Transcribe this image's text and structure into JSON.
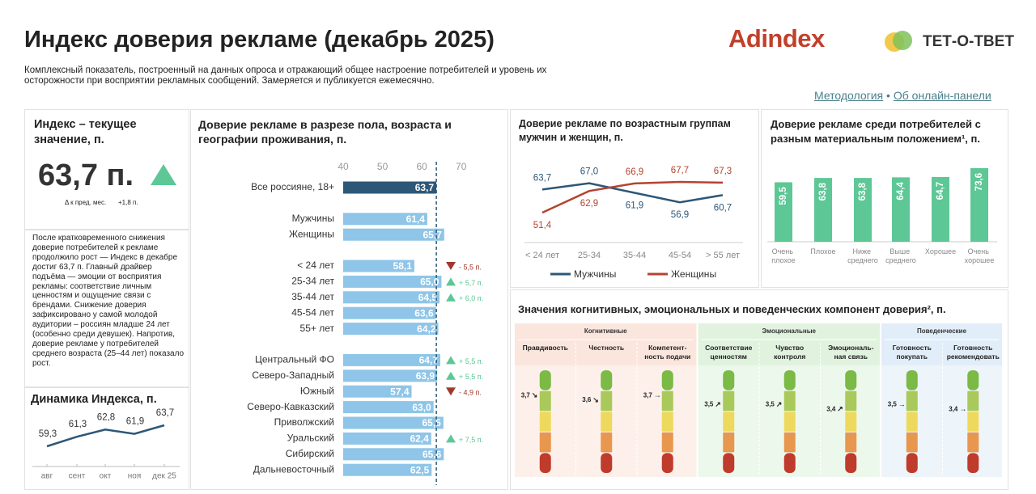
{
  "header": {
    "title": "Индекс доверия рекламе (декабрь 2025)",
    "subtitle": "Комплексный показатель, построенный на данных опроса и отражающий общее настроение потребителей и уровень их осторожности при восприятии рекламных сообщений. Замеряется и публикуется ежемесячно.",
    "logo_left": "Adindex",
    "logo_right": "ТЕТ-О-ТВЕТ",
    "links": [
      "Методология",
      "Об онлайн-панели"
    ],
    "link_separator": "•"
  },
  "current_index": {
    "title": "Индекс – текущее значение, п.",
    "value": 63.7,
    "value_label": "63,7 п.",
    "delta_caption": "Δ к пред. мес.",
    "delta": 1.8,
    "delta_label": "+1,8 п."
  },
  "commentary": "После кратковременного снижения доверие потребителей к рекламе продолжило рост — Индекс в декабре достиг 63,7 п. Главный драйвер подъёма — эмоции от восприятия рекламы: соответствие личным ценностям и ощущение связи с брендами. Снижение доверия зафиксировано у самой молодой аудитории – россиян младше 24 лет (особенно среди девушек). Напротив, доверие рекламе у потребителей среднего возраста (25–44 лет) показало рост.",
  "chart_data": [
    {
      "type": "line",
      "title": "Динамика Индекса, п.",
      "categories": [
        "авг",
        "сент",
        "окт",
        "ноя",
        "дек 25"
      ],
      "values": [
        59.3,
        61.3,
        62.8,
        61.9,
        63.7
      ],
      "value_labels": [
        "59,3",
        "61,3",
        "62,8",
        "61,9",
        "63,7"
      ],
      "color": "#2d5777"
    },
    {
      "type": "hbar",
      "title": "Доверие рекламе в разрезе пола, возраста и географии проживания, п.",
      "categories": [
        "Все россияне, 18+",
        "Мужчины",
        "Женщины",
        "< 24 лет",
        "25-34 лет",
        "35-44 лет",
        "45-54 лет",
        "55+ лет",
        "Центральный ФО",
        "Северо-Западный",
        "Южный",
        "Северо-Кавказский",
        "Приволжский",
        "Уральский",
        "Сибирский",
        "Дальневосточный"
      ],
      "values": [
        63.7,
        61.4,
        65.7,
        58.1,
        65.0,
        64.5,
        63.6,
        64.2,
        64.7,
        63.9,
        57.4,
        63.0,
        65.5,
        62.4,
        65.6,
        62.5
      ],
      "value_labels": [
        "63,7",
        "61,4",
        "65,7",
        "58,1",
        "65,0",
        "64,5",
        "63,6",
        "64,2",
        "64,7",
        "63,9",
        "57,4",
        "63,0",
        "65,5",
        "62,4",
        "65,6",
        "62,5"
      ],
      "changes": [
        null,
        null,
        null,
        -5.5,
        5.7,
        6.0,
        null,
        null,
        5.5,
        5.5,
        -4.9,
        null,
        null,
        7.5,
        null,
        null
      ],
      "change_labels": [
        null,
        null,
        null,
        "- 5,5 п.",
        "+ 5,7 п.",
        "+ 6,0 п.",
        null,
        null,
        "+ 5,5 п.",
        "+ 5,5 п.",
        "- 4,9 п.",
        null,
        null,
        "+ 7,5 п.",
        null,
        null
      ],
      "xlim": [
        40,
        75
      ],
      "xticks": [
        40,
        50,
        60,
        70
      ],
      "color": "#8ec5e8",
      "highlight_color": "#2d5777"
    },
    {
      "type": "line",
      "title": "Доверие рекламе по возрастным группам мужчин и женщин, п.",
      "categories": [
        "< 24 лет",
        "25-34",
        "35-44",
        "45-54",
        "> 55 лет"
      ],
      "series": [
        {
          "name": "Мужчины",
          "color": "#2d5777",
          "values": [
            63.7,
            67.0,
            61.9,
            56.9,
            60.7
          ],
          "value_labels": [
            "63,7",
            "67,0",
            "61,9",
            "56,9",
            "60,7"
          ]
        },
        {
          "name": "Женщины",
          "color": "#b5432f",
          "values": [
            51.4,
            62.9,
            66.9,
            67.7,
            67.3
          ],
          "value_labels": [
            "51,4",
            "62,9",
            "66,9",
            "67,7",
            "67,3"
          ]
        }
      ],
      "legend": "bottom"
    },
    {
      "type": "bar",
      "title": "Доверие рекламе среди потребителей с разным материальным положением¹, п.",
      "categories": [
        "Очень плохое",
        "Плохое",
        "Ниже среднего",
        "Выше среднего",
        "Хорошее",
        "Очень хорошее"
      ],
      "values": [
        59.5,
        63.8,
        63.8,
        64.4,
        64.7,
        73.6
      ],
      "value_labels": [
        "59,5",
        "63,8",
        "63,8",
        "64,4",
        "64,7",
        "73,6"
      ],
      "color": "#5dc796"
    },
    {
      "type": "thermometer",
      "title": "Значения когнитивных, эмоциональных и поведенческих компонент доверия², п.",
      "groups": [
        {
          "name": "Когнитивные",
          "color": "#fbe6de",
          "categories": [
            "Правдивость",
            "Честность",
            "Компетент-\nность подачи"
          ],
          "values": [
            3.7,
            3.6,
            3.7
          ],
          "value_labels": [
            "3,7",
            "3,6",
            "3,7"
          ],
          "trend_labels": [
            "↘",
            "↘",
            "→"
          ]
        },
        {
          "name": "Эмоциональные",
          "color": "#e1f3df",
          "categories": [
            "Соответствие\nценностям",
            "Чувство\nконтроля",
            "Эмоциональ-\nная связь"
          ],
          "values": [
            3.5,
            3.5,
            3.4
          ],
          "value_labels": [
            "3,5",
            "3,5",
            "3,4"
          ],
          "trend_labels": [
            "↗",
            "↗",
            "↗"
          ]
        },
        {
          "name": "Поведенческие",
          "color": "#e1eef9",
          "categories": [
            "Готовность\nпокупать",
            "Готовность\nрекомендовать"
          ],
          "values": [
            3.5,
            3.4
          ],
          "value_labels": [
            "3,5",
            "3,4"
          ],
          "trend_labels": [
            "→",
            "→"
          ]
        }
      ]
    }
  ]
}
